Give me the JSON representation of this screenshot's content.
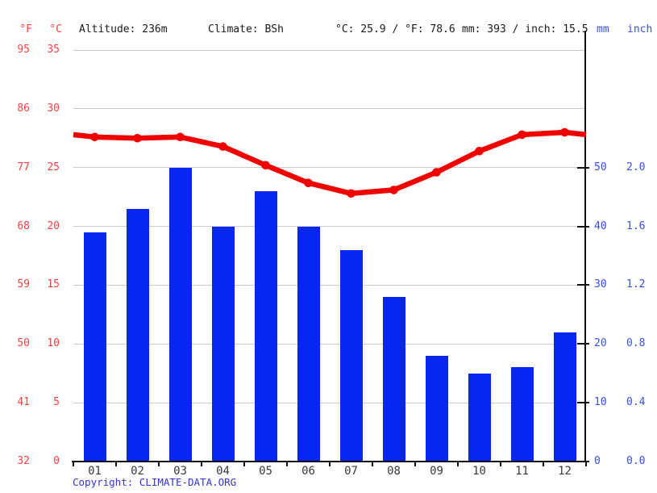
{
  "header": {
    "unit_f": "°F",
    "unit_c": "°C",
    "altitude": "Altitude: 236m",
    "climate": "Climate: BSh",
    "temperature_summary": "°C: 25.9 / °F: 78.6",
    "precipitation_summary": "mm: 393 / inch: 15.5",
    "unit_mm": "mm",
    "unit_inch": "inch"
  },
  "footer": {
    "copyright_label": "Copyright:",
    "copyright_link": "CLIMATE-DATA.ORG"
  },
  "colors": {
    "bar_blue": "#0726f0",
    "line_red": "#f20000",
    "red_label": "#ff4040",
    "blue_label": "#3450f0",
    "month_label": "#3a3a3a",
    "grid": "#cccccc",
    "axis": "#111111",
    "copyright_blue": "#3333e0"
  },
  "chart_data": {
    "type": "combo",
    "title": "",
    "categories": [
      "01",
      "02",
      "03",
      "04",
      "05",
      "06",
      "07",
      "08",
      "09",
      "10",
      "11",
      "12"
    ],
    "series": [
      {
        "name": "precipitation_mm",
        "type": "bar",
        "values": [
          39,
          43,
          50,
          40,
          46,
          40,
          36,
          28,
          18,
          15,
          16,
          22
        ]
      },
      {
        "name": "temperature_c",
        "type": "line",
        "values": [
          27.6,
          27.5,
          27.6,
          26.8,
          25.2,
          23.7,
          22.8,
          23.1,
          24.6,
          26.4,
          27.8,
          28.0
        ]
      }
    ],
    "left_axis": {
      "f_ticks": [
        "95",
        "86",
        "77",
        "68",
        "59",
        "50",
        "41",
        "32"
      ],
      "c_ticks": [
        "35",
        "30",
        "25",
        "20",
        "15",
        "10",
        "5",
        "0"
      ],
      "c_range": [
        0,
        35
      ]
    },
    "right_axis": {
      "mm_ticks": [
        "50",
        "40",
        "30",
        "20",
        "10",
        "0"
      ],
      "inch_ticks": [
        "2.0",
        "1.6",
        "1.2",
        "0.8",
        "0.4",
        "0.0"
      ],
      "mm_range": [
        0,
        70
      ]
    },
    "grid": true,
    "legend": false
  }
}
